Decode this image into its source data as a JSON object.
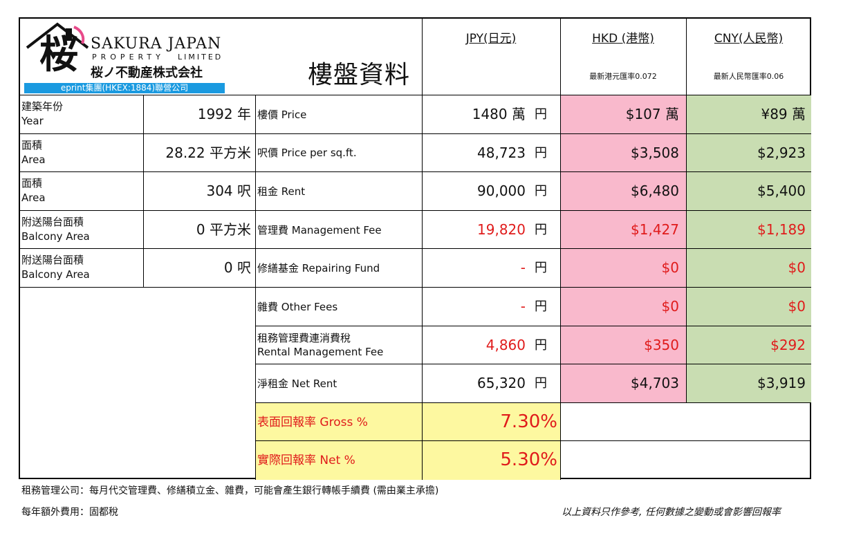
{
  "logo": {
    "kanji": "桜",
    "brand": "SAKURA JAPAN",
    "sub1": "PROPERTY",
    "sub2": "LIMITED",
    "jp_name": "桜ノ不動産株式会社",
    "banner": "eprint集團(HKEX:1884)聯營公司",
    "title": "樓盤資料"
  },
  "currency": {
    "jpy": "JPY(日元)",
    "hkd": "HKD (港幣)",
    "hkd_rate": "最新港元匯率0.072",
    "cny": "CNY(人民幣)",
    "cny_rate": "最新人民幣匯率0.06"
  },
  "left_rows": [
    {
      "zh": "建築年份",
      "en": "Year",
      "value": "1992 年"
    },
    {
      "zh": "面積",
      "en": "Area",
      "value": "28.22 平方米"
    },
    {
      "zh": "面積",
      "en": "Area",
      "value": "304 呎"
    },
    {
      "zh": "附送陽台面積",
      "en": "Balcony Area",
      "value": "0 平方米"
    },
    {
      "zh": "附送陽台面積",
      "en": "Balcony Area",
      "value": "0 呎"
    }
  ],
  "fees": [
    {
      "label": "樓價 Price",
      "label2": "",
      "jpy": "1480 萬",
      "unit": "円",
      "hkd": "$107 萬",
      "cny": "¥89 萬",
      "red": false
    },
    {
      "label": "呎價 Price per sq.ft.",
      "label2": "",
      "jpy": "48,723",
      "unit": "円",
      "hkd": "$3,508",
      "cny": "$2,923",
      "red": false
    },
    {
      "label": "租金 Rent",
      "label2": "",
      "jpy": "90,000",
      "unit": "円",
      "hkd": "$6,480",
      "cny": "$5,400",
      "red": false
    },
    {
      "label": "管理費 Management Fee",
      "label2": "",
      "jpy": "19,820",
      "unit": "円",
      "hkd": "$1,427",
      "cny": "$1,189",
      "red": true
    },
    {
      "label": "修繕基金 Repairing Fund",
      "label2": "",
      "jpy": "-",
      "unit": "円",
      "hkd": "$0",
      "cny": "$0",
      "red": true
    },
    {
      "label": "雜費 Other Fees",
      "label2": "",
      "jpy": "-",
      "unit": "円",
      "hkd": "$0",
      "cny": "$0",
      "red": true
    },
    {
      "label": "租務管理費連消費稅",
      "label2": "Rental Management Fee",
      "jpy": "4,860",
      "unit": "円",
      "hkd": "$350",
      "cny": "$292",
      "red": true
    },
    {
      "label": "淨租金 Net Rent",
      "label2": "",
      "jpy": "65,320",
      "unit": "円",
      "hkd": "$4,703",
      "cny": "$3,919",
      "red": false
    }
  ],
  "returns": [
    {
      "label": "表面回報率 Gross %",
      "value": "7.30%"
    },
    {
      "label": "實際回報率 Net %",
      "value": "5.30%"
    }
  ],
  "footer": {
    "note1": "租務管理公司：每月代交管理費、修繕積立金、雜費，可能會產生銀行轉帳手續費 (需由業主承擔)",
    "note2": "每年額外費用：固都稅",
    "disclaimer": "以上資料只作參考, 任何數據之變動或會影響回報率"
  },
  "colors": {
    "hkd_fill": "#f9b9cc",
    "cny_fill": "#c9ddb2",
    "return_fill": "#fdf8a0",
    "alert_red": "#e01b1b",
    "banner_blue": "#1a9ae0"
  }
}
